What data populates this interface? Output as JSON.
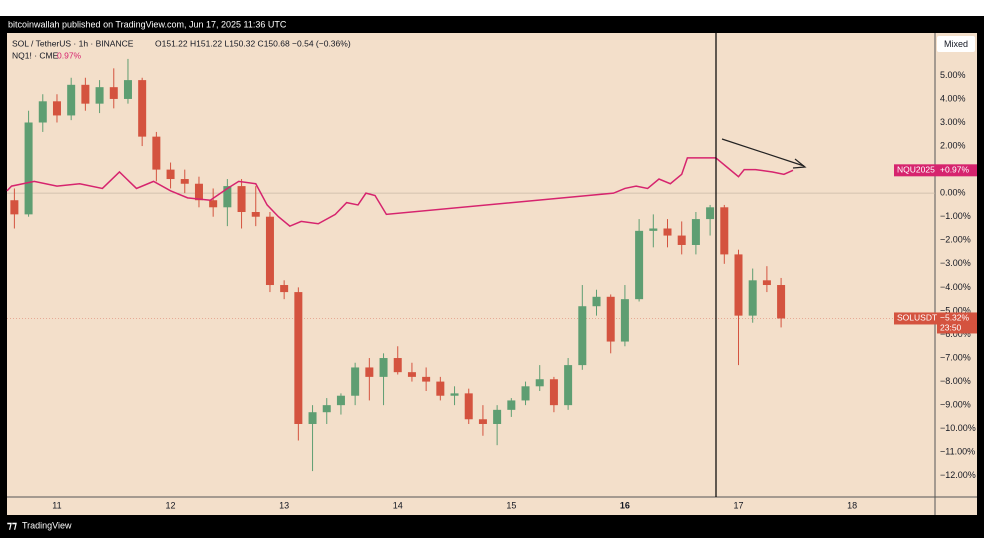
{
  "header": "bitcoinwallah published on TradingView.com, Jun 17, 2025 11:36 UTC",
  "footer": "TradingView",
  "button": "Mixed",
  "chart_data": {
    "type": "candlestick",
    "name": "SOL / TetherUS · 1h · BINANCE",
    "ohlc_text": "O151.22 H151.22 L150.32 C150.68 −0.54 (−0.36%)",
    "tag": "SOLUSDT",
    "last_label": "−5.32%",
    "countdown": "23:50",
    "up_color": "#5e9e72",
    "down_color": "#d4533f",
    "x": [
      10.625,
      10.75,
      10.875,
      11.0,
      11.125,
      11.25,
      11.375,
      11.5,
      11.625,
      11.75,
      11.875,
      12.0,
      12.125,
      12.25,
      12.375,
      12.5,
      12.625,
      12.75,
      12.875,
      13.0,
      13.125,
      13.25,
      13.375,
      13.5,
      13.625,
      13.75,
      13.875,
      14.0,
      14.125,
      14.25,
      14.375,
      14.5,
      14.625,
      14.75,
      14.875,
      15.0,
      15.125,
      15.25,
      15.375,
      15.5,
      15.625,
      15.75,
      15.875,
      16.0,
      16.125,
      16.25,
      16.375,
      16.5,
      16.625,
      16.75,
      16.875,
      17.0,
      17.125,
      17.25,
      17.375
    ],
    "open": [
      -0.3,
      -0.9,
      3.0,
      3.9,
      3.3,
      4.6,
      3.8,
      4.5,
      4.0,
      4.8,
      2.4,
      1.0,
      0.6,
      0.4,
      -0.3,
      -0.6,
      0.3,
      -0.8,
      -1.0,
      -3.9,
      -4.2,
      -9.8,
      -9.3,
      -9.0,
      -8.6,
      -7.4,
      -7.8,
      -7.0,
      -7.6,
      -7.8,
      -8.0,
      -8.6,
      -8.5,
      -9.6,
      -9.8,
      -9.2,
      -8.8,
      -8.2,
      -7.9,
      -9.0,
      -7.3,
      -4.8,
      -4.4,
      -6.3,
      -4.5,
      -1.6,
      -1.5,
      -1.8,
      -2.2,
      -1.1,
      -0.6,
      -2.6,
      -5.2,
      -3.7,
      -3.9
    ],
    "high": [
      0.2,
      3.5,
      4.2,
      4.2,
      4.9,
      4.9,
      4.8,
      5.3,
      5.7,
      4.9,
      2.6,
      1.3,
      1.0,
      0.7,
      0.2,
      0.6,
      0.6,
      0.3,
      -0.8,
      -3.7,
      -4.0,
      -9.0,
      -8.7,
      -8.5,
      -7.2,
      -7.0,
      -6.8,
      -6.5,
      -7.2,
      -7.4,
      -7.8,
      -8.2,
      -8.3,
      -9.0,
      -9.0,
      -8.7,
      -8.0,
      -7.3,
      -7.8,
      -7.0,
      -3.9,
      -4.1,
      -4.3,
      -3.9,
      -1.1,
      -0.9,
      -1.1,
      -1.2,
      -0.8,
      -0.5,
      -0.5,
      -2.4,
      -3.2,
      -3.1,
      -3.6
    ],
    "low": [
      -1.5,
      -1.0,
      2.6,
      3.0,
      3.1,
      3.5,
      3.4,
      3.6,
      3.8,
      2.0,
      0.5,
      0.2,
      0.0,
      -0.6,
      -1.0,
      -1.4,
      -1.5,
      -1.4,
      -4.2,
      -4.5,
      -10.5,
      -11.8,
      -9.8,
      -9.4,
      -9.0,
      -8.8,
      -9.0,
      -7.7,
      -8.0,
      -8.4,
      -8.8,
      -9.0,
      -9.8,
      -10.3,
      -10.7,
      -9.5,
      -9.0,
      -8.4,
      -9.3,
      -9.2,
      -7.5,
      -5.2,
      -6.8,
      -6.5,
      -4.6,
      -2.3,
      -2.3,
      -2.6,
      -2.6,
      -1.8,
      -3.0,
      -7.3,
      -5.5,
      -4.2,
      -5.7
    ],
    "close": [
      -0.9,
      3.0,
      3.9,
      3.3,
      4.6,
      3.8,
      4.5,
      4.0,
      4.8,
      2.4,
      1.0,
      0.6,
      0.4,
      -0.3,
      -0.6,
      0.3,
      -0.8,
      -1.0,
      -3.9,
      -4.2,
      -9.8,
      -9.3,
      -9.0,
      -8.6,
      -7.4,
      -7.8,
      -7.0,
      -7.6,
      -7.8,
      -8.0,
      -8.6,
      -8.5,
      -9.6,
      -9.8,
      -9.2,
      -8.8,
      -8.2,
      -7.9,
      -9.0,
      -7.3,
      -4.8,
      -4.4,
      -6.3,
      -4.5,
      -1.6,
      -1.5,
      -1.8,
      -2.2,
      -1.1,
      -0.6,
      -2.6,
      -5.2,
      -3.7,
      -3.9,
      -5.32
    ],
    "overlay": {
      "name": "NQ1! · CME",
      "legend_value": "0.97%",
      "tag": "NQU2025",
      "last_label": "+0.97%",
      "color": "#d6246e",
      "x": [
        10.56,
        10.6,
        10.8,
        11.0,
        11.2,
        11.4,
        11.55,
        11.7,
        11.85,
        12.0,
        12.15,
        12.35,
        12.5,
        12.6,
        12.75,
        12.85,
        12.95,
        13.05,
        13.15,
        13.3,
        13.45,
        13.55,
        13.65,
        13.72,
        13.8,
        13.9,
        15.9,
        16.0,
        16.1,
        16.2,
        16.3,
        16.4,
        16.5,
        16.55,
        16.65,
        16.8,
        16.9,
        17.0,
        17.05,
        17.15,
        17.3,
        17.4,
        17.48
      ],
      "values": [
        0.1,
        0.3,
        0.5,
        0.3,
        0.4,
        0.2,
        0.9,
        0.2,
        0.5,
        0.1,
        -0.2,
        -0.3,
        0.2,
        0.5,
        0.4,
        -0.5,
        -1.0,
        -1.4,
        -1.2,
        -1.3,
        -0.9,
        -0.4,
        -0.5,
        0.0,
        -0.1,
        -0.9,
        0.0,
        0.2,
        0.3,
        0.2,
        0.6,
        0.4,
        0.8,
        1.5,
        1.5,
        1.5,
        1.1,
        0.7,
        1.0,
        1.0,
        0.9,
        0.8,
        0.97
      ]
    },
    "xlim": [
      10.56,
      18.73
    ],
    "xticks": [
      11,
      12,
      13,
      14,
      15,
      16,
      17,
      18
    ],
    "ylim": [
      -12.9,
      6.8
    ],
    "yticks": [
      {
        "value": 5,
        "label": "5.00%"
      },
      {
        "value": 4,
        "label": "4.00%"
      },
      {
        "value": 3,
        "label": "3.00%"
      },
      {
        "value": 2,
        "label": "2.00%"
      },
      {
        "value": 1,
        "label": "1.00%"
      },
      {
        "value": 0,
        "label": "0.00%"
      },
      {
        "value": -1,
        "label": "−1.00%"
      },
      {
        "value": -2,
        "label": "−2.00%"
      },
      {
        "value": -3,
        "label": "−3.00%"
      },
      {
        "value": -4,
        "label": "−4.00%"
      },
      {
        "value": -5,
        "label": "−5.00%"
      },
      {
        "value": -6,
        "label": "−6.00%"
      },
      {
        "value": -7,
        "label": "−7.00%"
      },
      {
        "value": -8,
        "label": "−8.00%"
      },
      {
        "value": -9,
        "label": "−9.00%"
      },
      {
        "value": -10,
        "label": "−10.00%"
      },
      {
        "value": -11,
        "label": "−11.00%"
      },
      {
        "value": -12,
        "label": "−12.00%"
      }
    ]
  }
}
